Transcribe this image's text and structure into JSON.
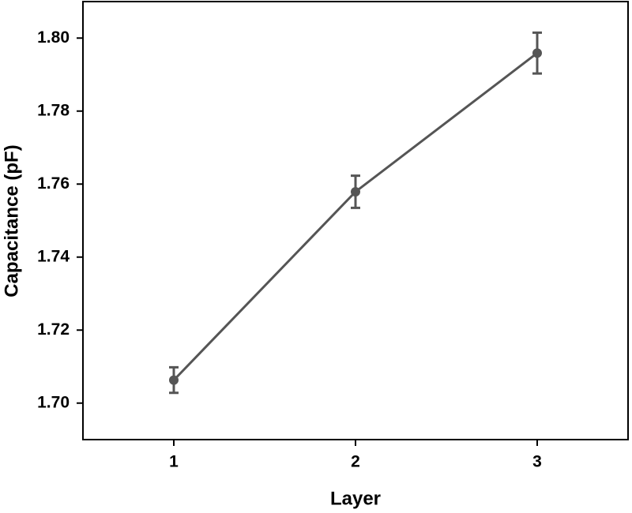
{
  "chart_data": {
    "type": "line",
    "x_label": "Layer",
    "y_label": "Capacitance (pF)",
    "x": [
      1,
      2,
      3
    ],
    "series": [
      {
        "color": "#555555",
        "values": [
          1.7063,
          1.7579,
          1.7959
        ],
        "errors": [
          0.0035,
          0.0044,
          0.0056
        ]
      }
    ],
    "xlim": [
      0.5,
      3.5
    ],
    "xticks": [
      1,
      2,
      3
    ],
    "ylim": [
      1.69,
      1.81
    ],
    "yticks": [
      {
        "value": 1.7,
        "label": "1.70"
      },
      {
        "value": 1.72,
        "label": "1.72"
      },
      {
        "value": 1.74,
        "label": "1.74"
      },
      {
        "value": 1.76,
        "label": "1.76"
      },
      {
        "value": 1.78,
        "label": "1.78"
      },
      {
        "value": 1.8,
        "label": "1.80"
      }
    ],
    "grid": false
  }
}
